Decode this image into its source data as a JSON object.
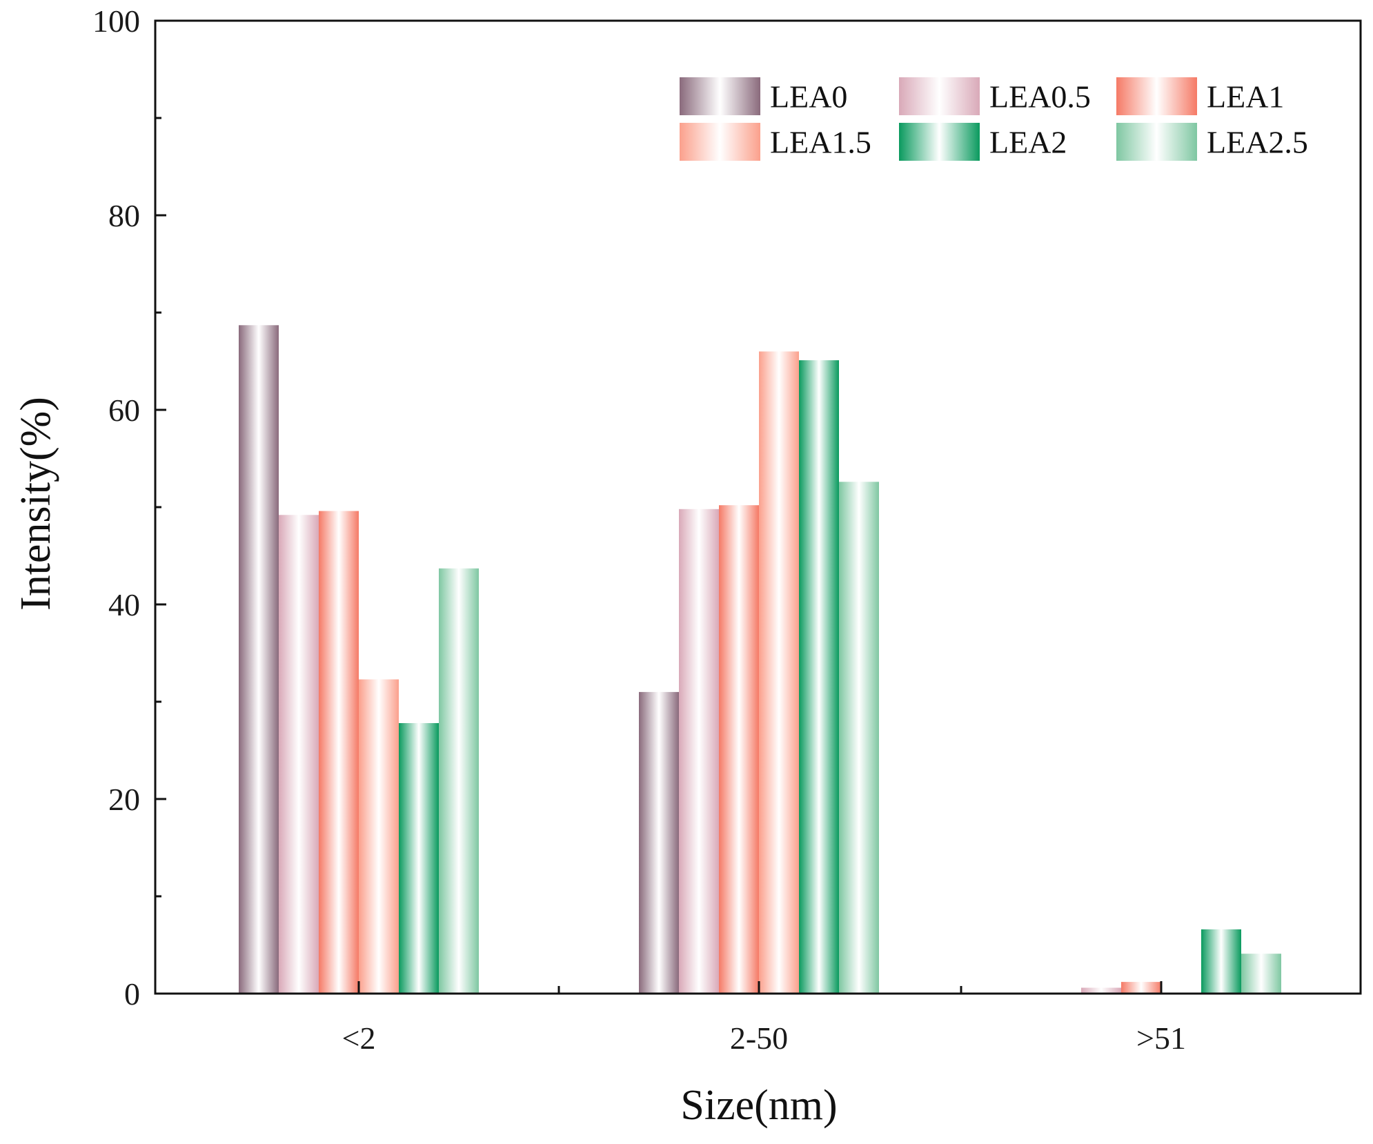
{
  "chart_data": {
    "type": "bar",
    "title": "",
    "xlabel": "Size(nm)",
    "ylabel": "Intensity(%)",
    "ylim": [
      0,
      100
    ],
    "yticks": [
      0,
      20,
      40,
      60,
      80,
      100
    ],
    "grid": false,
    "legend_position": "top-right",
    "categories": [
      "<2",
      "2-50",
      ">51"
    ],
    "series": [
      {
        "name": "LEA0",
        "color": "#8a6a7c",
        "values": [
          68.7,
          31.0,
          0.0
        ]
      },
      {
        "name": "LEA0.5",
        "color": "#d9a9b8",
        "values": [
          49.2,
          49.8,
          0.6
        ]
      },
      {
        "name": "LEA1",
        "color": "#f57a66",
        "values": [
          49.6,
          50.2,
          1.2
        ]
      },
      {
        "name": "LEA1.5",
        "color": "#fba08c",
        "values": [
          32.3,
          66.0,
          0.0
        ]
      },
      {
        "name": "LEA2",
        "color": "#0a9a5e",
        "values": [
          27.8,
          65.1,
          6.6
        ]
      },
      {
        "name": "LEA2.5",
        "color": "#7fc7a2",
        "values": [
          43.7,
          52.6,
          4.1
        ]
      }
    ]
  }
}
